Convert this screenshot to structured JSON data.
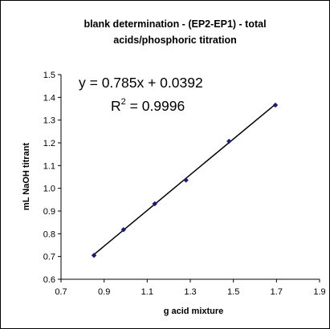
{
  "chart_data": {
    "type": "scatter",
    "title_line1": "blank determination - (EP2-EP1) - total",
    "title_line2": "acids/phosphoric titration",
    "xlabel": "g acid mixture",
    "ylabel": "mL NaOH titrant",
    "xlim": [
      0.7,
      1.9
    ],
    "ylim": [
      0.6,
      1.5
    ],
    "xticks": [
      "0.7",
      "0.9",
      "1.1",
      "1.3",
      "1.5",
      "1.7",
      "1.9"
    ],
    "yticks": [
      "0.6",
      "0.7",
      "0.8",
      "0.9",
      "1.0",
      "1.1",
      "1.2",
      "1.3",
      "1.4",
      "1.5"
    ],
    "grid": false,
    "series": [
      {
        "points": [
          {
            "x": 0.853,
            "y": 0.705
          },
          {
            "x": 0.99,
            "y": 0.818
          },
          {
            "x": 1.135,
            "y": 0.932
          },
          {
            "x": 1.28,
            "y": 1.036
          },
          {
            "x": 1.48,
            "y": 1.207
          },
          {
            "x": 1.695,
            "y": 1.366
          }
        ],
        "color": "#1a1a7e"
      }
    ],
    "trendline": {
      "slope": 0.785,
      "intercept": 0.0392,
      "x_start": 0.853,
      "x_end": 1.695,
      "color": "#000000"
    },
    "equation": {
      "text": "y = 0.785x + 0.0392",
      "r2_prefix": "R",
      "r2_exp": "2",
      "r2_value": " = 0.9996"
    }
  }
}
